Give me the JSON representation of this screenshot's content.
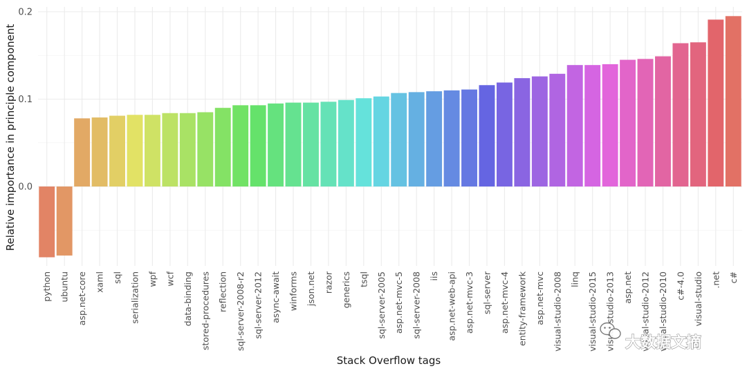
{
  "chart_data": {
    "type": "bar",
    "xlabel": "Stack Overflow tags",
    "ylabel": "Relative importance in principle component",
    "ylim": [
      -0.08,
      0.2
    ],
    "yticks": [
      "0.0",
      "0.1",
      "0.2"
    ],
    "grid": true,
    "legend": "none",
    "categories": [
      "python",
      "ubuntu",
      "asp.net-core",
      "xaml",
      "sql",
      "serialization",
      "wpf",
      "wcf",
      "data-binding",
      "stored-procedures",
      "reflection",
      "sql-server-2008-r2",
      "sql-server-2012",
      "async-await",
      "winforms",
      "json.net",
      "razor",
      "generics",
      "tsql",
      "sql-server-2005",
      "asp.net-mvc-5",
      "sql-server-2008",
      "iis",
      "asp.net-web-api",
      "asp.net-mvc-3",
      "sql-server",
      "asp.net-mvc-4",
      "entity-framework",
      "asp.net-mvc",
      "visual-studio-2008",
      "linq",
      "visual-studio-2015",
      "visual-studio-2013",
      "asp.net",
      "visual-studio-2012",
      "visual-studio-2010",
      "c#-4.0",
      "visual-studio",
      ".net",
      "c#"
    ],
    "values": [
      -0.081,
      -0.079,
      0.078,
      0.079,
      0.081,
      0.082,
      0.082,
      0.084,
      0.084,
      0.085,
      0.09,
      0.093,
      0.093,
      0.095,
      0.096,
      0.096,
      0.097,
      0.099,
      0.101,
      0.103,
      0.107,
      0.108,
      0.109,
      0.11,
      0.111,
      0.116,
      0.119,
      0.124,
      0.126,
      0.129,
      0.139,
      0.139,
      0.14,
      0.145,
      0.146,
      0.149,
      0.164,
      0.165,
      0.191,
      0.195
    ]
  },
  "watermark": {
    "text": "大数据文摘",
    "icon": "wechat-icon"
  }
}
